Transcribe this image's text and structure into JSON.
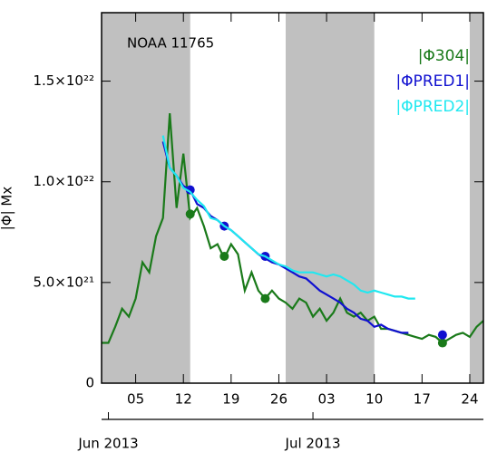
{
  "chart_data": {
    "type": "line",
    "annotation": "NOAA 11765",
    "y_label": "|Φ| Mx",
    "xlim": [
      "2013-05-31",
      "2013-07-26"
    ],
    "ylim": [
      0,
      1.84e+22
    ],
    "xticks": [
      {
        "value": "2013-06-05",
        "label": "05"
      },
      {
        "value": "2013-06-12",
        "label": "12"
      },
      {
        "value": "2013-06-19",
        "label": "19"
      },
      {
        "value": "2013-06-26",
        "label": "26"
      },
      {
        "value": "2013-07-03",
        "label": "03"
      },
      {
        "value": "2013-07-10",
        "label": "10"
      },
      {
        "value": "2013-07-17",
        "label": "17"
      },
      {
        "value": "2013-07-24",
        "label": "24"
      }
    ],
    "month_ticks": [
      {
        "value": "2013-06-01",
        "label": "Jun 2013"
      },
      {
        "value": "2013-07-01",
        "label": "Jul 2013"
      }
    ],
    "yticks": [
      0,
      {
        "value": 5e+21,
        "label": "5.0×10²¹"
      },
      {
        "value": 1e+22,
        "label": "1.0×10²²"
      },
      {
        "value": 1.5e+22,
        "label": "1.5×10²²"
      }
    ],
    "shaded_ranges": [
      [
        "2013-05-31",
        "2013-06-13"
      ],
      [
        "2013-06-27",
        "2013-07-10"
      ],
      [
        "2013-07-24",
        "2013-07-26"
      ]
    ],
    "shade_color": "#c0c0c0",
    "series": [
      {
        "name": "|Φ304|",
        "color": "#1a7a1a",
        "x": [
          "2013-05-31",
          "2013-06-01",
          "2013-06-02",
          "2013-06-03",
          "2013-06-04",
          "2013-06-05",
          "2013-06-06",
          "2013-06-07",
          "2013-06-08",
          "2013-06-09",
          "2013-06-10",
          "2013-06-11",
          "2013-06-12",
          "2013-06-13",
          "2013-06-14",
          "2013-06-15",
          "2013-06-16",
          "2013-06-17",
          "2013-06-18",
          "2013-06-19",
          "2013-06-20",
          "2013-06-21",
          "2013-06-22",
          "2013-06-23",
          "2013-06-24",
          "2013-06-25",
          "2013-06-26",
          "2013-06-27",
          "2013-06-28",
          "2013-06-29",
          "2013-06-30",
          "2013-07-01",
          "2013-07-02",
          "2013-07-03",
          "2013-07-04",
          "2013-07-05",
          "2013-07-06",
          "2013-07-07",
          "2013-07-08",
          "2013-07-09",
          "2013-07-10",
          "2013-07-11",
          "2013-07-12",
          "2013-07-13",
          "2013-07-14",
          "2013-07-15",
          "2013-07-16",
          "2013-07-17",
          "2013-07-18",
          "2013-07-19",
          "2013-07-20",
          "2013-07-21",
          "2013-07-22",
          "2013-07-23",
          "2013-07-24",
          "2013-07-25",
          "2013-07-26"
        ],
        "values": [
          2e+21,
          2e+21,
          2.8e+21,
          3.7e+21,
          3.3e+21,
          4.2e+21,
          6e+21,
          5.5e+21,
          7.3e+21,
          8.2e+21,
          1.34e+22,
          8.7e+21,
          1.14e+22,
          8.2e+21,
          8.7e+21,
          7.8e+21,
          6.7e+21,
          6.9e+21,
          6.2e+21,
          6.9e+21,
          6.4e+21,
          4.6e+21,
          5.5e+21,
          4.6e+21,
          4.2e+21,
          4.6e+21,
          4.2e+21,
          4e+21,
          3.7e+21,
          4.2e+21,
          4e+21,
          3.3e+21,
          3.7e+21,
          3.1e+21,
          3.5e+21,
          4.2e+21,
          3.5e+21,
          3.3e+21,
          3.5e+21,
          3.1e+21,
          3.3e+21,
          2.7e+21,
          2.7e+21,
          2.6e+21,
          2.5e+21,
          2.4e+21,
          2.3e+21,
          2.2e+21,
          2.4e+21,
          2.3e+21,
          2e+21,
          2.2e+21,
          2.4e+21,
          2.5e+21,
          2.3e+21,
          2.8e+21,
          3.1e+21
        ],
        "markers": {
          "x": [
            "2013-06-13",
            "2013-06-18",
            "2013-06-24",
            "2013-07-20"
          ],
          "values": [
            8.4e+21,
            6.3e+21,
            4.2e+21,
            2e+21
          ]
        }
      },
      {
        "name": "|ΦPRED1|",
        "color": "#1010d0",
        "x": [
          "2013-06-09",
          "2013-06-10",
          "2013-06-11",
          "2013-06-12",
          "2013-06-13",
          "2013-06-14",
          "2013-06-15",
          "2013-06-16",
          "2013-06-17",
          "2013-06-18",
          "2013-06-19",
          "2013-06-20",
          "2013-06-21",
          "2013-06-22",
          "2013-06-23",
          "2013-06-24",
          "2013-06-25",
          "2013-06-26",
          "2013-06-27",
          "2013-06-28",
          "2013-06-29",
          "2013-06-30",
          "2013-07-01",
          "2013-07-02",
          "2013-07-03",
          "2013-07-04",
          "2013-07-05",
          "2013-07-06",
          "2013-07-07",
          "2013-07-08",
          "2013-07-09",
          "2013-07-10",
          "2013-07-11",
          "2013-07-12",
          "2013-07-13",
          "2013-07-14",
          "2013-07-15"
        ],
        "values": [
          1.2e+22,
          1.07e+22,
          1.03e+22,
          9.8e+21,
          9.6e+21,
          8.9e+21,
          8.7e+21,
          8.3e+21,
          8.1e+21,
          7.8e+21,
          7.6e+21,
          7.3e+21,
          7e+21,
          6.7e+21,
          6.4e+21,
          6.2e+21,
          6e+21,
          5.9e+21,
          5.7e+21,
          5.5e+21,
          5.3e+21,
          5.2e+21,
          4.9e+21,
          4.6e+21,
          4.4e+21,
          4.2e+21,
          4e+21,
          3.7e+21,
          3.5e+21,
          3.2e+21,
          3.1e+21,
          2.8e+21,
          2.9e+21,
          2.7e+21,
          2.6e+21,
          2.5e+21,
          2.5e+21
        ],
        "markers": {
          "x": [
            "2013-06-13",
            "2013-06-18",
            "2013-06-24",
            "2013-07-20"
          ],
          "values": [
            9.6e+21,
            7.8e+21,
            6.3e+21,
            2.4e+21
          ]
        }
      },
      {
        "name": "|ΦPRED2|",
        "color": "#20e8f0",
        "x": [
          "2013-06-09",
          "2013-06-10",
          "2013-06-11",
          "2013-06-12",
          "2013-06-13",
          "2013-06-14",
          "2013-06-15",
          "2013-06-16",
          "2013-06-17",
          "2013-06-18",
          "2013-06-19",
          "2013-06-20",
          "2013-06-21",
          "2013-06-22",
          "2013-06-23",
          "2013-06-24",
          "2013-06-25",
          "2013-06-26",
          "2013-06-27",
          "2013-06-28",
          "2013-06-29",
          "2013-06-30",
          "2013-07-01",
          "2013-07-02",
          "2013-07-03",
          "2013-07-04",
          "2013-07-05",
          "2013-07-06",
          "2013-07-07",
          "2013-07-08",
          "2013-07-09",
          "2013-07-10",
          "2013-07-11",
          "2013-07-12",
          "2013-07-13",
          "2013-07-14",
          "2013-07-15",
          "2013-07-16"
        ],
        "values": [
          1.23e+22,
          1.07e+22,
          1.03e+22,
          9.7e+21,
          9.5e+21,
          9.1e+21,
          8.8e+21,
          8.2e+21,
          8.1e+21,
          7.8e+21,
          7.6e+21,
          7.3e+21,
          7e+21,
          6.7e+21,
          6.4e+21,
          6.3e+21,
          6.1e+21,
          5.9e+21,
          5.8e+21,
          5.6e+21,
          5.5e+21,
          5.5e+21,
          5.5e+21,
          5.4e+21,
          5.3e+21,
          5.4e+21,
          5.3e+21,
          5.1e+21,
          4.9e+21,
          4.6e+21,
          4.5e+21,
          4.6e+21,
          4.5e+21,
          4.4e+21,
          4.3e+21,
          4.3e+21,
          4.2e+21,
          4.2e+21
        ]
      }
    ]
  }
}
